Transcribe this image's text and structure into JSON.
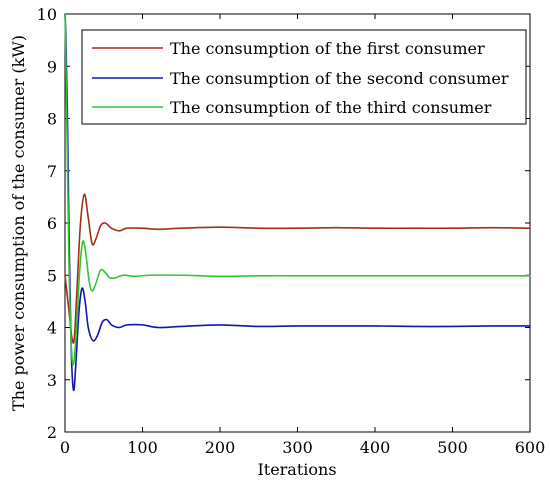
{
  "chart_data": {
    "type": "line",
    "title": "",
    "xlabel": "Iterations",
    "ylabel": "The power consumption of the consumer (kW)",
    "xlim": [
      0,
      600
    ],
    "ylim": [
      2,
      10
    ],
    "xticks": [
      0,
      100,
      200,
      300,
      400,
      500,
      600
    ],
    "yticks": [
      2,
      3,
      4,
      5,
      6,
      7,
      8,
      9,
      10
    ],
    "grid": false,
    "legend_position": "top",
    "series": [
      {
        "name": "The consumption of the first consumer",
        "color": "#a0301c",
        "x": [
          0,
          3,
          6,
          9,
          12,
          16,
          20,
          25,
          30,
          35,
          40,
          46,
          52,
          60,
          70,
          80,
          100,
          120,
          150,
          200,
          250,
          300,
          350,
          400,
          450,
          500,
          550,
          600
        ],
        "y": [
          5.0,
          4.6,
          4.2,
          3.8,
          3.8,
          4.9,
          6.0,
          6.55,
          6.1,
          5.6,
          5.7,
          5.95,
          6.0,
          5.9,
          5.85,
          5.9,
          5.9,
          5.88,
          5.9,
          5.92,
          5.9,
          5.9,
          5.91,
          5.9,
          5.9,
          5.9,
          5.91,
          5.9
        ]
      },
      {
        "name": "The consumption of the second consumer",
        "color": "#1414b4",
        "x": [
          0,
          1,
          3,
          5,
          8,
          11,
          14,
          18,
          22,
          26,
          30,
          36,
          42,
          48,
          54,
          60,
          70,
          80,
          100,
          120,
          150,
          200,
          250,
          300,
          350,
          400,
          450,
          500,
          550,
          600
        ],
        "y": [
          10.0,
          9.6,
          8.2,
          6.0,
          3.6,
          2.8,
          3.3,
          4.3,
          4.75,
          4.5,
          4.0,
          3.75,
          3.85,
          4.1,
          4.15,
          4.05,
          4.0,
          4.05,
          4.05,
          4.0,
          4.02,
          4.05,
          4.02,
          4.03,
          4.03,
          4.03,
          4.02,
          4.02,
          4.03,
          4.03
        ]
      },
      {
        "name": "The consumption of the third consumer",
        "color": "#30c830",
        "x": [
          0,
          1,
          3,
          5,
          8,
          11,
          15,
          19,
          23,
          27,
          31,
          35,
          40,
          46,
          52,
          58,
          65,
          75,
          90,
          110,
          150,
          200,
          250,
          300,
          350,
          400,
          450,
          500,
          550,
          600
        ],
        "y": [
          10.0,
          9.2,
          7.3,
          5.3,
          3.7,
          3.3,
          4.0,
          5.1,
          5.65,
          5.4,
          4.9,
          4.7,
          4.85,
          5.1,
          5.05,
          4.95,
          4.95,
          5.0,
          4.98,
          5.0,
          5.0,
          4.98,
          4.99,
          4.99,
          4.99,
          4.99,
          4.99,
          4.99,
          4.99,
          4.99
        ]
      }
    ]
  }
}
